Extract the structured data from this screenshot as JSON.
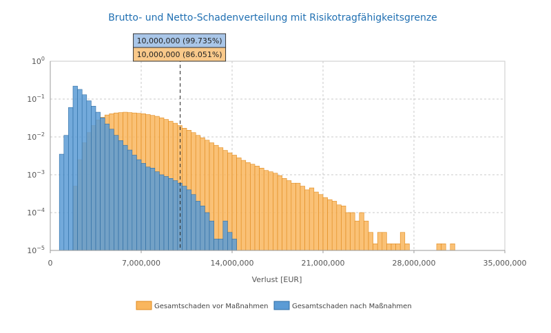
{
  "chart_data": {
    "type": "bar",
    "subtype": "overlapping-histogram",
    "title": "Brutto- und Netto-Schadenverteilung mit Risikotragfähigkeitsgrenze",
    "xlabel": "Verlust [EUR]",
    "ylabel": "",
    "xlim": [
      0,
      35000000
    ],
    "ylim": [
      1e-05,
      1
    ],
    "y_scale": "log",
    "grid": true,
    "legend_position": "bottom-center",
    "x_ticks": [
      {
        "value": 0,
        "label": "0"
      },
      {
        "value": 7000000,
        "label": "7,000,000"
      },
      {
        "value": 14000000,
        "label": "14,000,000"
      },
      {
        "value": 21000000,
        "label": "21,000,000"
      },
      {
        "value": 28000000,
        "label": "28,000,000"
      },
      {
        "value": 35000000,
        "label": "35,000,000"
      }
    ],
    "y_ticks": [
      {
        "value": 1,
        "base": "10",
        "exp": "0"
      },
      {
        "value": 0.1,
        "base": "10",
        "exp": "−1"
      },
      {
        "value": 0.01,
        "base": "10",
        "exp": "−2"
      },
      {
        "value": 0.001,
        "base": "10",
        "exp": "−3"
      },
      {
        "value": 0.0001,
        "base": "10",
        "exp": "−4"
      },
      {
        "value": 1e-05,
        "base": "10",
        "exp": "−5"
      }
    ],
    "bin_width": 350000,
    "limit_line": {
      "x": 10000000
    },
    "callouts": [
      {
        "text": "10,000,000 (99.735%)",
        "color": "#a9c6e8"
      },
      {
        "text": "10,000,000 (86.051%)",
        "color": "#f9c98a"
      }
    ],
    "series": [
      {
        "name": "Gesamtschaden vor Maßnahmen",
        "fill": "#f9b65e",
        "stroke": "#e08a1e",
        "bins": [
          {
            "x": 1750000,
            "y": 0.0005
          },
          {
            "x": 2100000,
            "y": 0.0025
          },
          {
            "x": 2450000,
            "y": 0.007
          },
          {
            "x": 2800000,
            "y": 0.013
          },
          {
            "x": 3150000,
            "y": 0.02
          },
          {
            "x": 3500000,
            "y": 0.028
          },
          {
            "x": 3850000,
            "y": 0.033
          },
          {
            "x": 4200000,
            "y": 0.038
          },
          {
            "x": 4550000,
            "y": 0.041
          },
          {
            "x": 4900000,
            "y": 0.043
          },
          {
            "x": 5250000,
            "y": 0.044
          },
          {
            "x": 5600000,
            "y": 0.045
          },
          {
            "x": 5950000,
            "y": 0.044
          },
          {
            "x": 6300000,
            "y": 0.043
          },
          {
            "x": 6650000,
            "y": 0.042
          },
          {
            "x": 7000000,
            "y": 0.041
          },
          {
            "x": 7350000,
            "y": 0.039
          },
          {
            "x": 7700000,
            "y": 0.037
          },
          {
            "x": 8050000,
            "y": 0.035
          },
          {
            "x": 8400000,
            "y": 0.032
          },
          {
            "x": 8750000,
            "y": 0.029
          },
          {
            "x": 9100000,
            "y": 0.026
          },
          {
            "x": 9450000,
            "y": 0.023
          },
          {
            "x": 9800000,
            "y": 0.02
          },
          {
            "x": 10150000,
            "y": 0.017
          },
          {
            "x": 10500000,
            "y": 0.015
          },
          {
            "x": 10850000,
            "y": 0.013
          },
          {
            "x": 11200000,
            "y": 0.011
          },
          {
            "x": 11550000,
            "y": 0.0095
          },
          {
            "x": 11900000,
            "y": 0.0082
          },
          {
            "x": 12250000,
            "y": 0.007
          },
          {
            "x": 12600000,
            "y": 0.006
          },
          {
            "x": 12950000,
            "y": 0.0052
          },
          {
            "x": 13300000,
            "y": 0.0044
          },
          {
            "x": 13650000,
            "y": 0.0038
          },
          {
            "x": 14000000,
            "y": 0.0033
          },
          {
            "x": 14350000,
            "y": 0.0028
          },
          {
            "x": 14700000,
            "y": 0.0024
          },
          {
            "x": 15050000,
            "y": 0.0021
          },
          {
            "x": 15400000,
            "y": 0.0019
          },
          {
            "x": 15750000,
            "y": 0.0017
          },
          {
            "x": 16100000,
            "y": 0.0015
          },
          {
            "x": 16450000,
            "y": 0.0013
          },
          {
            "x": 16800000,
            "y": 0.0012
          },
          {
            "x": 17150000,
            "y": 0.0011
          },
          {
            "x": 17500000,
            "y": 0.00095
          },
          {
            "x": 17850000,
            "y": 0.0008
          },
          {
            "x": 18200000,
            "y": 0.0007
          },
          {
            "x": 18550000,
            "y": 0.0006
          },
          {
            "x": 18900000,
            "y": 0.0006
          },
          {
            "x": 19250000,
            "y": 0.0005
          },
          {
            "x": 19600000,
            "y": 0.0004
          },
          {
            "x": 19950000,
            "y": 0.00045
          },
          {
            "x": 20300000,
            "y": 0.00035
          },
          {
            "x": 20650000,
            "y": 0.0003
          },
          {
            "x": 21000000,
            "y": 0.00025
          },
          {
            "x": 21350000,
            "y": 0.00022
          },
          {
            "x": 21700000,
            "y": 0.0002
          },
          {
            "x": 22050000,
            "y": 0.00016
          },
          {
            "x": 22400000,
            "y": 0.00015
          },
          {
            "x": 22750000,
            "y": 0.0001
          },
          {
            "x": 23100000,
            "y": 0.0001
          },
          {
            "x": 23450000,
            "y": 6e-05
          },
          {
            "x": 23800000,
            "y": 0.0001
          },
          {
            "x": 24150000,
            "y": 6e-05
          },
          {
            "x": 24500000,
            "y": 3e-05
          },
          {
            "x": 24850000,
            "y": 1.5e-05
          },
          {
            "x": 25200000,
            "y": 3e-05
          },
          {
            "x": 25550000,
            "y": 3e-05
          },
          {
            "x": 25900000,
            "y": 1.5e-05
          },
          {
            "x": 26250000,
            "y": 1.5e-05
          },
          {
            "x": 26600000,
            "y": 1.5e-05
          },
          {
            "x": 26950000,
            "y": 3e-05
          },
          {
            "x": 27300000,
            "y": 1.5e-05
          },
          {
            "x": 29750000,
            "y": 1.5e-05
          },
          {
            "x": 30100000,
            "y": 1.5e-05
          },
          {
            "x": 30800000,
            "y": 1.5e-05
          }
        ]
      },
      {
        "name": "Gesamtschaden nach Maßnahmen",
        "fill": "#5b9bd5",
        "stroke": "#2e6da4",
        "bins": [
          {
            "x": 700000,
            "y": 0.0035
          },
          {
            "x": 1050000,
            "y": 0.011
          },
          {
            "x": 1400000,
            "y": 0.06
          },
          {
            "x": 1750000,
            "y": 0.22
          },
          {
            "x": 2100000,
            "y": 0.18
          },
          {
            "x": 2450000,
            "y": 0.13
          },
          {
            "x": 2800000,
            "y": 0.09
          },
          {
            "x": 3150000,
            "y": 0.065
          },
          {
            "x": 3500000,
            "y": 0.045
          },
          {
            "x": 3850000,
            "y": 0.032
          },
          {
            "x": 4200000,
            "y": 0.022
          },
          {
            "x": 4550000,
            "y": 0.016
          },
          {
            "x": 4900000,
            "y": 0.011
          },
          {
            "x": 5250000,
            "y": 0.008
          },
          {
            "x": 5600000,
            "y": 0.006
          },
          {
            "x": 5950000,
            "y": 0.0045
          },
          {
            "x": 6300000,
            "y": 0.0033
          },
          {
            "x": 6650000,
            "y": 0.0025
          },
          {
            "x": 7000000,
            "y": 0.002
          },
          {
            "x": 7350000,
            "y": 0.0016
          },
          {
            "x": 7700000,
            "y": 0.0015
          },
          {
            "x": 8050000,
            "y": 0.0012
          },
          {
            "x": 8400000,
            "y": 0.001
          },
          {
            "x": 8750000,
            "y": 0.0009
          },
          {
            "x": 9100000,
            "y": 0.0008
          },
          {
            "x": 9450000,
            "y": 0.0007
          },
          {
            "x": 9800000,
            "y": 0.0006
          },
          {
            "x": 10150000,
            "y": 0.0005
          },
          {
            "x": 10500000,
            "y": 0.0004
          },
          {
            "x": 10850000,
            "y": 0.0003
          },
          {
            "x": 11200000,
            "y": 0.0002
          },
          {
            "x": 11550000,
            "y": 0.00015
          },
          {
            "x": 11900000,
            "y": 0.0001
          },
          {
            "x": 12250000,
            "y": 6e-05
          },
          {
            "x": 12600000,
            "y": 2e-05
          },
          {
            "x": 12950000,
            "y": 2e-05
          },
          {
            "x": 13300000,
            "y": 6e-05
          },
          {
            "x": 13650000,
            "y": 3e-05
          },
          {
            "x": 14000000,
            "y": 2e-05
          }
        ]
      }
    ]
  }
}
